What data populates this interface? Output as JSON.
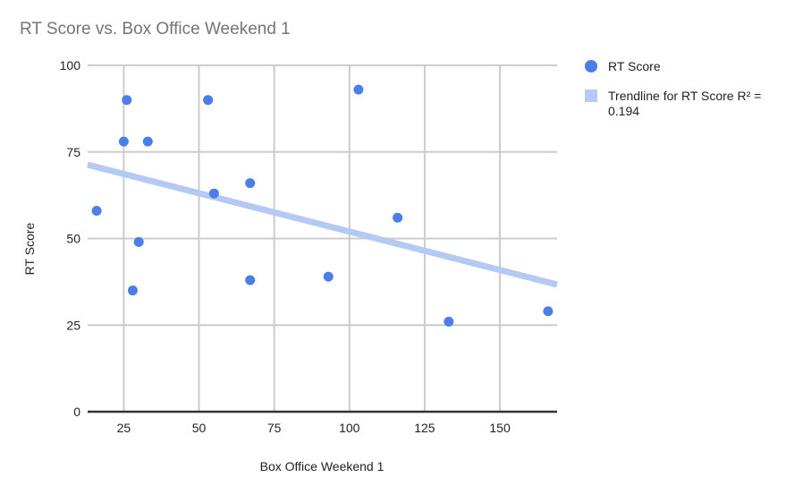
{
  "chart": {
    "title": "RT Score vs. Box Office Weekend 1",
    "xlabel": "Box Office Weekend 1",
    "ylabel": "RT Score",
    "legend": [
      {
        "label": "RT Score",
        "kind": "marker",
        "color": "#4a7ee8"
      },
      {
        "label": "Trendline for RT Score R² = 0.194",
        "kind": "trendline",
        "color": "#b4c9f3"
      }
    ]
  },
  "chart_data": {
    "type": "scatter",
    "title": "RT Score vs. Box Office Weekend 1",
    "xlabel": "Box Office Weekend 1",
    "ylabel": "RT Score",
    "xlim": [
      13,
      169
    ],
    "ylim": [
      0,
      100
    ],
    "x_ticks": [
      25,
      50,
      75,
      100,
      125,
      150
    ],
    "y_ticks": [
      0,
      25,
      50,
      75,
      100
    ],
    "grid": true,
    "legend_position": "right",
    "series": [
      {
        "name": "RT Score",
        "color": "#4a7ee8",
        "points": [
          [
            16,
            58
          ],
          [
            25,
            78
          ],
          [
            26,
            90
          ],
          [
            28,
            35
          ],
          [
            30,
            49
          ],
          [
            33,
            78
          ],
          [
            53,
            90
          ],
          [
            55,
            63
          ],
          [
            67,
            66
          ],
          [
            67,
            38
          ],
          [
            93,
            39
          ],
          [
            103,
            93
          ],
          [
            116,
            56
          ],
          [
            133,
            26
          ],
          [
            166,
            29
          ]
        ]
      }
    ],
    "trendline": {
      "name": "Trendline for RT Score",
      "r_squared": 0.194,
      "color": "#b4c9f3",
      "start": [
        13,
        71.3
      ],
      "end": [
        169,
        36.7
      ]
    }
  }
}
